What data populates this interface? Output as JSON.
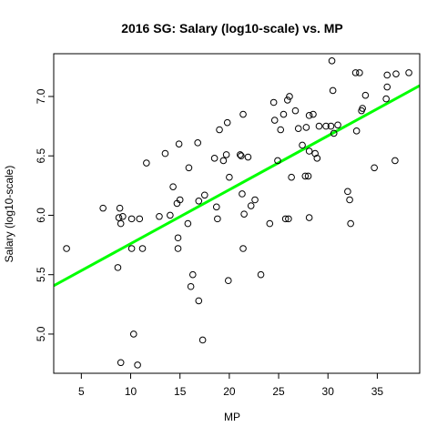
{
  "chart_data": {
    "type": "scatter",
    "title": "2016 SG: Salary (log10-scale) vs. MP",
    "xlabel": "MP",
    "ylabel": "Salary (log10-scale)",
    "xlim": [
      2.2,
      39.3
    ],
    "ylim": [
      4.67,
      7.36
    ],
    "x_ticks": [
      5,
      10,
      15,
      20,
      25,
      30,
      35
    ],
    "y_ticks": [
      5.0,
      5.5,
      6.0,
      6.5,
      7.0
    ],
    "x_tick_labels": [
      "5",
      "10",
      "15",
      "20",
      "25",
      "30",
      "35"
    ],
    "y_tick_labels": [
      "5.0",
      "5.5",
      "6.0",
      "6.5",
      "7.0"
    ],
    "grid": false,
    "regression_line": {
      "intercept": 5.307,
      "slope": 0.0454,
      "color": "#00ff00"
    },
    "point_color": "#000000",
    "points": [
      {
        "x": 3.5,
        "y": 5.72
      },
      {
        "x": 7.2,
        "y": 6.06
      },
      {
        "x": 8.7,
        "y": 5.56
      },
      {
        "x": 8.8,
        "y": 5.98
      },
      {
        "x": 8.9,
        "y": 6.06
      },
      {
        "x": 9.0,
        "y": 5.93
      },
      {
        "x": 9.0,
        "y": 4.76
      },
      {
        "x": 9.2,
        "y": 5.99
      },
      {
        "x": 10.1,
        "y": 5.97
      },
      {
        "x": 10.1,
        "y": 5.72
      },
      {
        "x": 10.3,
        "y": 5.0
      },
      {
        "x": 10.7,
        "y": 4.74
      },
      {
        "x": 10.9,
        "y": 5.97
      },
      {
        "x": 11.2,
        "y": 5.72
      },
      {
        "x": 11.6,
        "y": 6.44
      },
      {
        "x": 12.9,
        "y": 5.99
      },
      {
        "x": 13.5,
        "y": 6.52
      },
      {
        "x": 14.0,
        "y": 6.0
      },
      {
        "x": 14.3,
        "y": 6.24
      },
      {
        "x": 14.7,
        "y": 6.1
      },
      {
        "x": 14.8,
        "y": 5.72
      },
      {
        "x": 14.8,
        "y": 5.81
      },
      {
        "x": 14.9,
        "y": 6.6
      },
      {
        "x": 15.0,
        "y": 6.13
      },
      {
        "x": 15.8,
        "y": 5.93
      },
      {
        "x": 15.9,
        "y": 6.4
      },
      {
        "x": 16.1,
        "y": 5.4
      },
      {
        "x": 16.3,
        "y": 5.5
      },
      {
        "x": 16.8,
        "y": 6.61
      },
      {
        "x": 16.9,
        "y": 6.12
      },
      {
        "x": 16.9,
        "y": 5.28
      },
      {
        "x": 17.3,
        "y": 4.95
      },
      {
        "x": 17.5,
        "y": 6.17
      },
      {
        "x": 18.5,
        "y": 6.48
      },
      {
        "x": 18.7,
        "y": 6.07
      },
      {
        "x": 18.8,
        "y": 5.97
      },
      {
        "x": 19.0,
        "y": 6.72
      },
      {
        "x": 19.4,
        "y": 6.46
      },
      {
        "x": 19.7,
        "y": 6.51
      },
      {
        "x": 19.8,
        "y": 6.78
      },
      {
        "x": 19.9,
        "y": 5.45
      },
      {
        "x": 20.0,
        "y": 6.32
      },
      {
        "x": 21.1,
        "y": 6.51
      },
      {
        "x": 21.2,
        "y": 6.5
      },
      {
        "x": 21.3,
        "y": 6.18
      },
      {
        "x": 21.4,
        "y": 6.85
      },
      {
        "x": 21.4,
        "y": 5.72
      },
      {
        "x": 21.5,
        "y": 6.01
      },
      {
        "x": 21.9,
        "y": 6.49
      },
      {
        "x": 22.2,
        "y": 6.08
      },
      {
        "x": 22.6,
        "y": 6.13
      },
      {
        "x": 23.2,
        "y": 5.5
      },
      {
        "x": 24.1,
        "y": 5.93
      },
      {
        "x": 24.5,
        "y": 6.95
      },
      {
        "x": 24.6,
        "y": 6.8
      },
      {
        "x": 24.9,
        "y": 6.46
      },
      {
        "x": 25.2,
        "y": 6.72
      },
      {
        "x": 25.5,
        "y": 6.85
      },
      {
        "x": 25.7,
        "y": 5.97
      },
      {
        "x": 25.9,
        "y": 6.97
      },
      {
        "x": 26.0,
        "y": 5.97
      },
      {
        "x": 26.1,
        "y": 7.0
      },
      {
        "x": 26.3,
        "y": 6.32
      },
      {
        "x": 26.7,
        "y": 6.88
      },
      {
        "x": 27.0,
        "y": 6.73
      },
      {
        "x": 27.4,
        "y": 6.59
      },
      {
        "x": 27.7,
        "y": 6.33
      },
      {
        "x": 27.8,
        "y": 6.74
      },
      {
        "x": 28.0,
        "y": 6.33
      },
      {
        "x": 28.1,
        "y": 6.54
      },
      {
        "x": 28.1,
        "y": 6.84
      },
      {
        "x": 28.1,
        "y": 5.98
      },
      {
        "x": 28.5,
        "y": 6.85
      },
      {
        "x": 28.7,
        "y": 6.52
      },
      {
        "x": 28.9,
        "y": 6.48
      },
      {
        "x": 29.1,
        "y": 6.75
      },
      {
        "x": 29.8,
        "y": 6.75
      },
      {
        "x": 30.3,
        "y": 6.75
      },
      {
        "x": 30.4,
        "y": 7.3
      },
      {
        "x": 30.5,
        "y": 7.05
      },
      {
        "x": 30.6,
        "y": 6.69
      },
      {
        "x": 31.0,
        "y": 6.76
      },
      {
        "x": 32.0,
        "y": 6.2
      },
      {
        "x": 32.2,
        "y": 6.13
      },
      {
        "x": 32.3,
        "y": 5.93
      },
      {
        "x": 32.8,
        "y": 7.2
      },
      {
        "x": 32.9,
        "y": 6.71
      },
      {
        "x": 33.2,
        "y": 7.2
      },
      {
        "x": 33.4,
        "y": 6.88
      },
      {
        "x": 33.5,
        "y": 6.9
      },
      {
        "x": 33.8,
        "y": 7.01
      },
      {
        "x": 34.7,
        "y": 6.4
      },
      {
        "x": 35.9,
        "y": 6.98
      },
      {
        "x": 36.0,
        "y": 7.08
      },
      {
        "x": 36.0,
        "y": 7.18
      },
      {
        "x": 36.8,
        "y": 6.46
      },
      {
        "x": 36.9,
        "y": 7.19
      },
      {
        "x": 38.2,
        "y": 7.2
      }
    ]
  }
}
